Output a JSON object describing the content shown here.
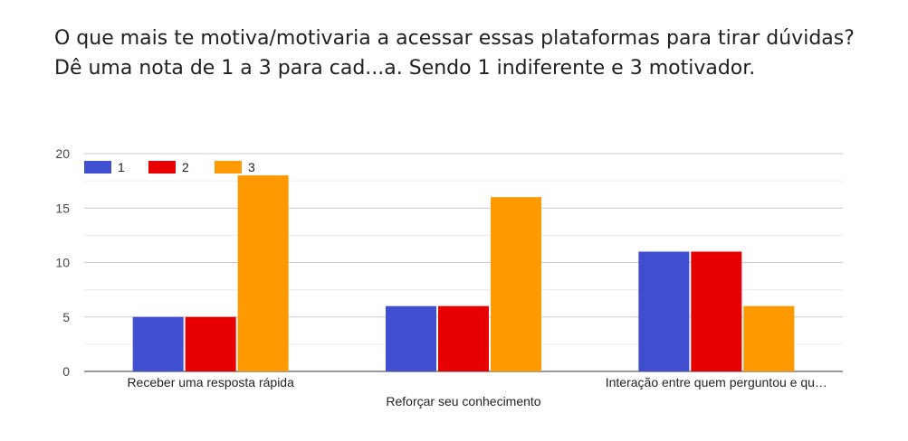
{
  "chart_data": {
    "type": "bar",
    "title": "O que mais te motiva/motivaria a acessar essas plataformas para tirar dúvidas? Dê uma nota de 1 a 3 para cad...a. Sendo 1 indiferente e 3 motivador.",
    "categories": [
      "Receber uma resposta rápida",
      "Reforçar seu conhecimento",
      "Interação entre quem perguntou e qu…"
    ],
    "series": [
      {
        "name": "1",
        "color": "#3f4fd0",
        "values": [
          5,
          6,
          11
        ]
      },
      {
        "name": "2",
        "color": "#e60000",
        "values": [
          5,
          6,
          11
        ]
      },
      {
        "name": "3",
        "color": "#ff9900",
        "values": [
          18,
          16,
          6
        ]
      }
    ],
    "ylim": [
      0,
      20
    ],
    "yticks": [
      0,
      5,
      10,
      15,
      20
    ],
    "grid": true,
    "legend": "top-left"
  }
}
